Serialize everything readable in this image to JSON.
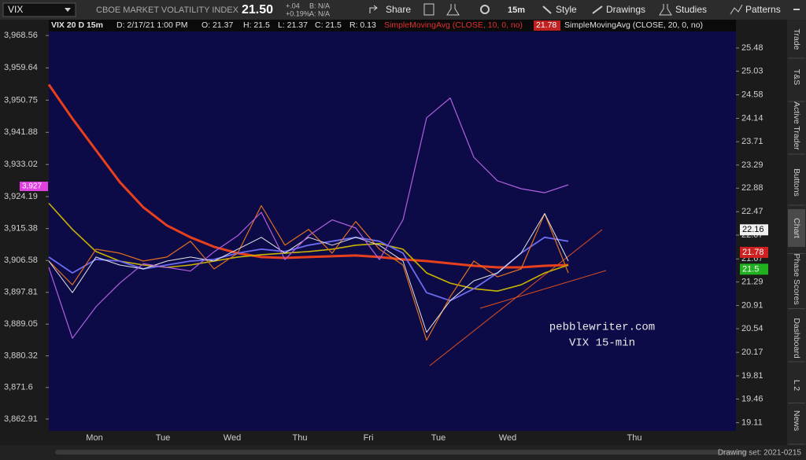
{
  "toolbar": {
    "symbol": "VIX",
    "description": "CBOE MARKET VOLATILITY INDEX",
    "last": "21.50",
    "change": "+.04",
    "change_pct": "+0.19%",
    "bid": "B: N/A",
    "ask": "A: N/A",
    "share": "Share",
    "timeframe": "15m",
    "style": "Style",
    "drawings": "Drawings",
    "studies": "Studies",
    "patterns": "Patterns"
  },
  "info_bar": {
    "chart": "VIX 20 D 15m",
    "date": "D: 2/17/21 1:00 PM",
    "open": "O: 21.37",
    "high": "H: 21.5",
    "low": "L: 21.37",
    "close": "C: 21.5",
    "range": "R: 0.13",
    "sma10": "SimpleMovingAvg (CLOSE, 10, 0, no)",
    "sma10_value": "21.78",
    "sma20": "SimpleMovingAvg (CLOSE, 20, 0, no)"
  },
  "chart_data": {
    "type": "line",
    "x_labels": [
      "Mon",
      "Tue",
      "Wed",
      "Thu",
      "Fri",
      "Tue",
      "Wed",
      "Thu"
    ],
    "ylim": [
      3859.64,
      3972.92
    ],
    "yticks": [
      {
        "value": 3968.56,
        "label": "3,968.56"
      },
      {
        "value": 3959.64,
        "label": "3,959.64"
      },
      {
        "value": 3950.75,
        "label": "3,950.75"
      },
      {
        "value": 3941.88,
        "label": "3,941.88"
      },
      {
        "value": 3933.02,
        "label": "3,933.02"
      },
      {
        "value": 3924.19,
        "label": "3,924.19"
      },
      {
        "value": 3915.38,
        "label": "3,915.38"
      },
      {
        "value": 3906.58,
        "label": "3,906.58"
      },
      {
        "value": 3897.81,
        "label": "3,897.81"
      },
      {
        "value": 3889.05,
        "label": "3,889.05"
      },
      {
        "value": 3880.32,
        "label": "3,880.32"
      },
      {
        "value": 3871.6,
        "label": "3,871.6"
      },
      {
        "value": 3862.91,
        "label": "3,862.91"
      }
    ],
    "y2lim": [
      18.99,
      26.04
    ],
    "y2log": true,
    "y2ticks": [
      25.48,
      25.03,
      24.58,
      24.14,
      23.71,
      23.29,
      22.88,
      22.47,
      22.07,
      21.67,
      21.29,
      20.91,
      20.54,
      20.17,
      19.81,
      19.46,
      19.11
    ],
    "series": [
      {
        "color": "#e8401c",
        "width": 3,
        "values": [
          3955.04,
          3945.67,
          3936.95,
          3928.23,
          3921.25,
          3916.24,
          3912.97,
          3910.35,
          3908.61,
          3907.52,
          3907.3,
          3907.52,
          3907.74,
          3907.96,
          3907.52,
          3906.87,
          3906.43,
          3905.78,
          3905.12,
          3904.69,
          3904.69,
          3905.12,
          3905.34
        ]
      },
      {
        "color": "#c9b300",
        "width": 1.6,
        "values": [
          3922.34,
          3915.15,
          3909.05,
          3906.43,
          3905.34,
          3904.69,
          3905.34,
          3906.43,
          3907.52,
          3908.17,
          3908.61,
          3909.05,
          3909.7,
          3910.79,
          3911.23,
          3909.7,
          3903.16,
          3900.33,
          3898.8,
          3898.15,
          3899.89,
          3903.16,
          3905.34
        ]
      },
      {
        "color": "#6c6cf2",
        "width": 1.8,
        "values": [
          3907.52,
          3903.16,
          3906.87,
          3906.43,
          3904.25,
          3905.34,
          3906.43,
          3906.87,
          3908.61,
          3909.7,
          3909.05,
          3910.79,
          3911.88,
          3912.97,
          3911.88,
          3908.61,
          3897.71,
          3895.53,
          3898.8,
          3903.16,
          3908.61,
          3912.97,
          3911.88
        ]
      },
      {
        "color": "#e07020",
        "width": 1.2,
        "values": [
          3906.43,
          3899.89,
          3909.7,
          3908.61,
          3906.43,
          3907.52,
          3911.88,
          3904.25,
          3908.61,
          3921.69,
          3910.79,
          3915.15,
          3908.61,
          3917.33,
          3909.7,
          3905.34,
          3884.63,
          3896.62,
          3906.43,
          3902.07,
          3904.25,
          3919.51,
          3903.16
        ]
      },
      {
        "color": "#e4e4e4",
        "width": 1,
        "values": [
          3906.43,
          3897.71,
          3907.52,
          3905.34,
          3904.25,
          3906.43,
          3907.52,
          3906.43,
          3909.7,
          3912.97,
          3908.61,
          3912.97,
          3910.79,
          3912.97,
          3910.79,
          3906.43,
          3886.81,
          3895.53,
          3900.98,
          3903.16,
          3908.61,
          3919.51,
          3906.43
        ]
      },
      {
        "color": "#b060e0",
        "width": 1.2,
        "axis": "y2",
        "values": [
          21.53,
          20.39,
          20.89,
          21.27,
          21.59,
          21.53,
          21.47,
          21.79,
          22.06,
          22.46,
          21.66,
          22.06,
          22.33,
          22.19,
          21.66,
          22.33,
          24.15,
          24.52,
          23.43,
          23.01,
          22.87,
          22.8,
          22.94
        ]
      }
    ],
    "price_marker": {
      "value": 3927,
      "label": "3,927",
      "color": "#e040e0"
    },
    "y2_markers": [
      {
        "value": 22.16,
        "color": "#f0f0f0"
      },
      {
        "value": 21.78,
        "color": "#d02020"
      },
      {
        "value": 21.5,
        "color": "#20b020"
      }
    ],
    "annotation": [
      "pebblewriter.com",
      "VIX 15-min"
    ]
  },
  "side_tabs": [
    "Trade",
    "T&S",
    "Active Trader",
    "Buttons",
    "Chart",
    "Phase Scores",
    "Dashboard",
    "L 2",
    "News"
  ],
  "footer": {
    "drawing_set": "Drawing set: 2021-0215"
  }
}
